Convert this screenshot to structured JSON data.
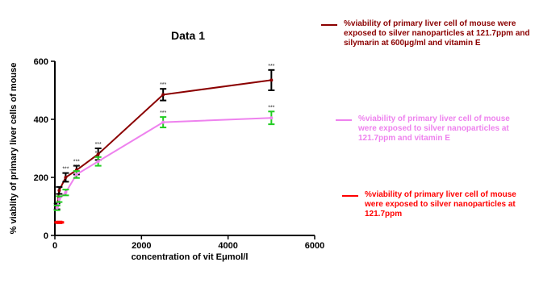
{
  "chart_data": {
    "type": "line",
    "title": "Data 1",
    "xlabel": "concentration of vit Eμmol/l",
    "ylabel": "% viablity of primary liver cells of mouse",
    "xlim": [
      0,
      6000
    ],
    "ylim": [
      0,
      600
    ],
    "xticks": [
      0,
      2000,
      4000,
      6000
    ],
    "yticks": [
      0,
      200,
      400,
      600
    ],
    "grid": false,
    "legend_position": "right",
    "series": [
      {
        "name": "%viability of primary liver cell of mouse were exposed to silver nanoparticles at 121.7ppm and silymarin at 600μg/ml and vitamin E",
        "color": "#8b0000",
        "x": [
          50,
          100,
          250,
          500,
          1000,
          2500,
          5000
        ],
        "y": [
          100,
          155,
          200,
          225,
          280,
          485,
          535
        ],
        "error": [
          10,
          12,
          15,
          15,
          20,
          20,
          35
        ],
        "annotations": [
          "",
          "",
          "***",
          "***",
          "***",
          "***",
          "***"
        ]
      },
      {
        "name": "%viability of primary liver cell of mouse were exposed to silver nanoparticles at 121.7ppm and vitamin E",
        "color": "#ee82ee",
        "x": [
          50,
          100,
          250,
          500,
          1000,
          2500,
          5000
        ],
        "y": [
          95,
          125,
          148,
          210,
          255,
          390,
          405
        ],
        "error": [
          8,
          10,
          10,
          12,
          15,
          18,
          22
        ],
        "annotations": [
          "",
          "",
          "",
          "***",
          "***",
          "***",
          "***"
        ]
      },
      {
        "name": "%viability of primary liver cell of mouse were exposed to silver nanoparticles at 121.7ppm",
        "color": "#ff0000",
        "x": [
          100
        ],
        "y": [
          45
        ],
        "error": [
          3
        ],
        "annotations": [
          ""
        ]
      }
    ]
  }
}
